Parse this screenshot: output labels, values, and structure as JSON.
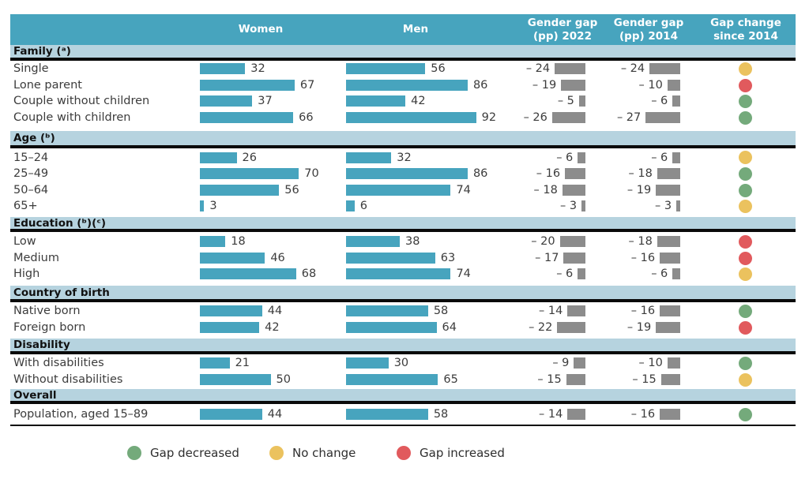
{
  "header": {
    "women": "Women",
    "men": "Men",
    "gap_2022": "Gender gap\n(pp) 2022",
    "gap_2014": "Gender gap\n(pp) 2014",
    "gap_change": "Gap change\nsince 2014"
  },
  "colors": {
    "header_teal": "#47A4BE",
    "band_blue": "#B6D3DF",
    "bar_teal": "#47A4BE",
    "gap_gray": "#8C8C8C",
    "decreased": "#74AA7B",
    "no-change": "#EBC25E",
    "increased": "#E15A5D",
    "text": "#3C3C3C",
    "line": "#0A0A0A"
  },
  "chart_data": {
    "type": "table",
    "columns": [
      "Women",
      "Men",
      "Gender gap (pp) 2022",
      "Gender gap (pp) 2014",
      "Gap change since 2014"
    ],
    "sections": [
      {
        "label": "Family (ᵃ)",
        "rows": [
          {
            "label": "Single",
            "women": 32,
            "men": 56,
            "gap_2022": -24,
            "gap_2014": -24,
            "change": "no-change"
          },
          {
            "label": "Lone parent",
            "women": 67,
            "men": 86,
            "gap_2022": -19,
            "gap_2014": -10,
            "change": "increased"
          },
          {
            "label": "Couple without children",
            "women": 37,
            "men": 42,
            "gap_2022": -5,
            "gap_2014": -6,
            "change": "decreased"
          },
          {
            "label": "Couple with children",
            "women": 66,
            "men": 92,
            "gap_2022": -26,
            "gap_2014": -27,
            "change": "decreased"
          }
        ]
      },
      {
        "label": "Age (ᵇ)",
        "rows": [
          {
            "label": "15–24",
            "women": 26,
            "men": 32,
            "gap_2022": -6,
            "gap_2014": -6,
            "change": "no-change"
          },
          {
            "label": "25–49",
            "women": 70,
            "men": 86,
            "gap_2022": -16,
            "gap_2014": -18,
            "change": "decreased"
          },
          {
            "label": "50–64",
            "women": 56,
            "men": 74,
            "gap_2022": -18,
            "gap_2014": -19,
            "change": "decreased"
          },
          {
            "label": "65+",
            "women": 3,
            "men": 6,
            "gap_2022": -3,
            "gap_2014": -3,
            "change": "no-change"
          }
        ]
      },
      {
        "label": "Education (ᵇ)(ᶜ)",
        "rows": [
          {
            "label": "Low",
            "women": 18,
            "men": 38,
            "gap_2022": -20,
            "gap_2014": -18,
            "change": "increased"
          },
          {
            "label": "Medium",
            "women": 46,
            "men": 63,
            "gap_2022": -17,
            "gap_2014": -16,
            "change": "increased"
          },
          {
            "label": "High",
            "women": 68,
            "men": 74,
            "gap_2022": -6,
            "gap_2014": -6,
            "change": "no-change"
          }
        ]
      },
      {
        "label": "Country of birth",
        "rows": [
          {
            "label": "Native born",
            "women": 44,
            "men": 58,
            "gap_2022": -14,
            "gap_2014": -16,
            "change": "decreased"
          },
          {
            "label": "Foreign born",
            "women": 42,
            "men": 64,
            "gap_2022": -22,
            "gap_2014": -19,
            "change": "increased"
          }
        ]
      },
      {
        "label": "Disability",
        "rows": [
          {
            "label": "With disabilities",
            "women": 21,
            "men": 30,
            "gap_2022": -9,
            "gap_2014": -10,
            "change": "decreased"
          },
          {
            "label": "Without disabilities",
            "women": 50,
            "men": 65,
            "gap_2022": -15,
            "gap_2014": -15,
            "change": "no-change"
          }
        ]
      },
      {
        "label": "Overall",
        "rows": [
          {
            "label": "Population, aged 15–89",
            "women": 44,
            "men": 58,
            "gap_2022": -14,
            "gap_2014": -16,
            "change": "decreased"
          }
        ]
      }
    ],
    "legend": [
      {
        "key": "decreased",
        "label": "Gap decreased",
        "color": "#74AA7B"
      },
      {
        "key": "no-change",
        "label": "No change",
        "color": "#EBC25E"
      },
      {
        "key": "increased",
        "label": "Gap increased",
        "color": "#E15A5D"
      }
    ]
  }
}
